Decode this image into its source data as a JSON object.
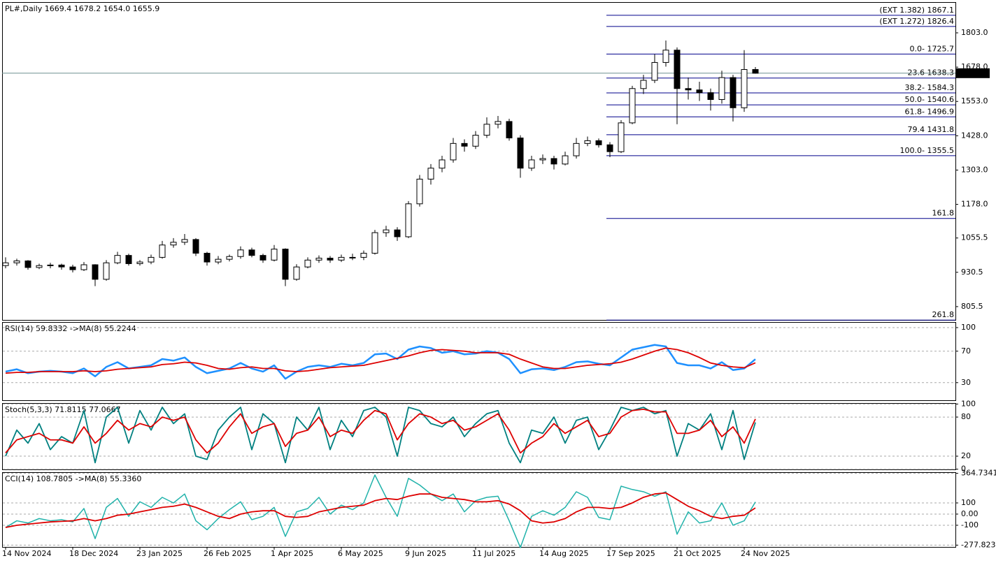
{
  "chart_data": [
    {
      "type": "candlestick",
      "title": "PL#,Daily  1669.4 1678.2 1654.0 1655.9",
      "candles": [
        [
          955,
          985,
          945,
          965
        ],
        [
          965,
          980,
          955,
          972
        ],
        [
          972,
          975,
          940,
          948
        ],
        [
          948,
          962,
          942,
          955
        ],
        [
          955,
          965,
          945,
          957
        ],
        [
          957,
          962,
          940,
          950
        ],
        [
          950,
          958,
          930,
          940
        ],
        [
          940,
          968,
          935,
          958
        ],
        [
          958,
          960,
          880,
          905
        ],
        [
          905,
          975,
          900,
          965
        ],
        [
          965,
          1005,
          960,
          992
        ],
        [
          992,
          998,
          955,
          962
        ],
        [
          962,
          975,
          955,
          968
        ],
        [
          968,
          995,
          960,
          985
        ],
        [
          985,
          1045,
          980,
          1030
        ],
        [
          1030,
          1055,
          1020,
          1040
        ],
        [
          1040,
          1070,
          1030,
          1050
        ],
        [
          1050,
          1055,
          990,
          1000
        ],
        [
          1000,
          1005,
          955,
          968
        ],
        [
          968,
          990,
          960,
          978
        ],
        [
          978,
          995,
          970,
          988
        ],
        [
          988,
          1025,
          980,
          1012
        ],
        [
          1012,
          1020,
          985,
          992
        ],
        [
          992,
          998,
          965,
          975
        ],
        [
          975,
          1030,
          970,
          1015
        ],
        [
          1015,
          1018,
          880,
          905
        ],
        [
          905,
          960,
          900,
          950
        ],
        [
          950,
          985,
          945,
          975
        ],
        [
          975,
          992,
          965,
          982
        ],
        [
          982,
          990,
          965,
          975
        ],
        [
          975,
          995,
          968,
          985
        ],
        [
          985,
          998,
          975,
          985
        ],
        [
          985,
          1010,
          975,
          1000
        ],
        [
          1000,
          1085,
          995,
          1075
        ],
        [
          1075,
          1100,
          1060,
          1085
        ],
        [
          1085,
          1095,
          1045,
          1060
        ],
        [
          1060,
          1190,
          1055,
          1180
        ],
        [
          1180,
          1285,
          1170,
          1270
        ],
        [
          1270,
          1325,
          1250,
          1310
        ],
        [
          1310,
          1355,
          1295,
          1340
        ],
        [
          1340,
          1420,
          1330,
          1400
        ],
        [
          1400,
          1415,
          1370,
          1390
        ],
        [
          1390,
          1445,
          1380,
          1430
        ],
        [
          1430,
          1495,
          1420,
          1470
        ],
        [
          1470,
          1500,
          1455,
          1480
        ],
        [
          1480,
          1490,
          1410,
          1420
        ],
        [
          1420,
          1430,
          1275,
          1310
        ],
        [
          1310,
          1355,
          1300,
          1340
        ],
        [
          1340,
          1360,
          1325,
          1345
        ],
        [
          1345,
          1355,
          1305,
          1325
        ],
        [
          1325,
          1370,
          1320,
          1355
        ],
        [
          1355,
          1420,
          1345,
          1400
        ],
        [
          1400,
          1425,
          1390,
          1410
        ],
        [
          1410,
          1418,
          1385,
          1395
        ],
        [
          1395,
          1405,
          1350,
          1370
        ],
        [
          1370,
          1485,
          1365,
          1475
        ],
        [
          1475,
          1610,
          1470,
          1600
        ],
        [
          1600,
          1650,
          1580,
          1630
        ],
        [
          1630,
          1725,
          1620,
          1695
        ],
        [
          1695,
          1775,
          1680,
          1740
        ],
        [
          1740,
          1750,
          1470,
          1600
        ],
        [
          1600,
          1640,
          1560,
          1595
        ],
        [
          1595,
          1625,
          1555,
          1585
        ],
        [
          1585,
          1600,
          1520,
          1560
        ],
        [
          1560,
          1665,
          1545,
          1640
        ],
        [
          1640,
          1650,
          1480,
          1530
        ],
        [
          1530,
          1740,
          1515,
          1669.4
        ],
        [
          1669.4,
          1678.2,
          1654.0,
          1655.9
        ]
      ],
      "ylim": [
        757,
        1915
      ],
      "yticks": [
        {
          "value": 1803,
          "label": "1803.0"
        },
        {
          "value": 1678,
          "label": "1678.0"
        },
        {
          "value": 1553,
          "label": "1553.0"
        },
        {
          "value": 1428,
          "label": "1428.0"
        },
        {
          "value": 1303,
          "label": "1303.0"
        },
        {
          "value": 1178,
          "label": "1178.0"
        },
        1055.5,
        930.5,
        805.5
      ],
      "fib_levels": [
        {
          "value": 1867.1,
          "label": "(EXT 1.382)  1867.1"
        },
        {
          "value": 1826.4,
          "label": "(EXT 1.272)  1826.4"
        },
        {
          "value": 1725.7,
          "label": "0.0- 1725.7"
        },
        {
          "value": 1638.3,
          "label": "23.6  1638.3"
        },
        {
          "value": 1584.3,
          "label": "38.2- 1584.3"
        },
        {
          "value": 1540.6,
          "label": "50.0- 1540.6"
        },
        {
          "value": 1496.9,
          "label": "61.8- 1496.9"
        },
        {
          "value": 1431.8,
          "label": "79.4 1431.8"
        },
        {
          "value": 1355.5,
          "label": "100.0- 1355.5"
        },
        {
          "value": 1126.7,
          "label": "161.8"
        },
        {
          "value": 756.5,
          "label": "261.8"
        }
      ],
      "fib_color": "#00008b",
      "price_line_color": "#6f9090"
    },
    {
      "type": "line",
      "title": "RSI(14) 59.8332  ->MA(8) 55.2244",
      "series": [
        {
          "color": "#1e90ff",
          "width": 2.5,
          "values": [
            44,
            47,
            42,
            44,
            45,
            44,
            42,
            48,
            38,
            50,
            56,
            48,
            50,
            52,
            60,
            58,
            62,
            50,
            42,
            45,
            48,
            55,
            48,
            44,
            52,
            35,
            44,
            50,
            52,
            50,
            54,
            52,
            55,
            66,
            67,
            60,
            72,
            76,
            74,
            68,
            70,
            66,
            67,
            70,
            68,
            60,
            42,
            47,
            48,
            46,
            50,
            56,
            57,
            54,
            52,
            62,
            72,
            75,
            78,
            76,
            55,
            52,
            52,
            48,
            56,
            46,
            48,
            59.8332
          ]
        },
        {
          "color": "#dd0000",
          "width": 1.8,
          "values": [
            42,
            43,
            43,
            44,
            44,
            44,
            44,
            45,
            44,
            45,
            47,
            48,
            49,
            50,
            53,
            54,
            56,
            55,
            52,
            48,
            47,
            49,
            50,
            48,
            48,
            45,
            44,
            45,
            47,
            49,
            50,
            51,
            52,
            55,
            58,
            61,
            64,
            68,
            71,
            72,
            71,
            70,
            68,
            68,
            68,
            66,
            60,
            55,
            50,
            48,
            48,
            50,
            52,
            53,
            54,
            56,
            60,
            65,
            70,
            74,
            72,
            68,
            62,
            55,
            52,
            50,
            49,
            55.2244
          ]
        }
      ],
      "ylim": [
        7.6,
        107.1
      ],
      "yticks": [
        100,
        70,
        30
      ]
    },
    {
      "type": "line",
      "title": "Stoch(5,3,3) 71.8115 77.0667",
      "series": [
        {
          "color": "#008080",
          "width": 1.8,
          "values": [
            20,
            60,
            40,
            70,
            30,
            50,
            40,
            90,
            10,
            80,
            95,
            40,
            90,
            60,
            95,
            70,
            85,
            20,
            15,
            60,
            80,
            95,
            30,
            85,
            70,
            10,
            80,
            60,
            95,
            30,
            75,
            50,
            90,
            95,
            80,
            20,
            95,
            90,
            70,
            65,
            80,
            50,
            70,
            85,
            90,
            40,
            10,
            60,
            55,
            80,
            40,
            75,
            80,
            30,
            60,
            95,
            90,
            95,
            85,
            90,
            20,
            70,
            60,
            85,
            30,
            90,
            15,
            71.8115
          ]
        },
        {
          "color": "#dd0000",
          "width": 1.8,
          "values": [
            25,
            45,
            50,
            55,
            45,
            45,
            40,
            65,
            40,
            55,
            75,
            60,
            70,
            65,
            80,
            75,
            80,
            45,
            25,
            40,
            65,
            85,
            55,
            65,
            70,
            35,
            55,
            60,
            80,
            50,
            60,
            55,
            75,
            90,
            85,
            45,
            70,
            85,
            80,
            70,
            75,
            60,
            65,
            75,
            85,
            60,
            25,
            40,
            50,
            70,
            55,
            65,
            75,
            50,
            55,
            80,
            90,
            92,
            88,
            88,
            55,
            55,
            60,
            75,
            50,
            65,
            40,
            77.0667
          ]
        }
      ],
      "ylim": [
        -0.3,
        101.5
      ],
      "yticks": [
        100,
        80,
        20,
        0
      ]
    },
    {
      "type": "line",
      "title": "CCI(14) 108.7805  ->MA(8) 55.3360",
      "series": [
        {
          "color": "#20b2aa",
          "width": 1.5,
          "values": [
            -120,
            -60,
            -80,
            -40,
            -60,
            -50,
            -70,
            50,
            -220,
            60,
            140,
            -20,
            110,
            60,
            150,
            100,
            180,
            -60,
            -140,
            -40,
            40,
            110,
            -50,
            -20,
            60,
            -200,
            20,
            50,
            150,
            0,
            80,
            40,
            100,
            350,
            150,
            -20,
            320,
            260,
            180,
            120,
            180,
            20,
            120,
            150,
            160,
            -60,
            -300,
            -20,
            30,
            -10,
            60,
            200,
            150,
            -30,
            -50,
            250,
            220,
            200,
            160,
            200,
            -180,
            20,
            -80,
            -60,
            100,
            -100,
            -60,
            108.7805
          ]
        },
        {
          "color": "#dd0000",
          "width": 1.8,
          "values": [
            -120,
            -100,
            -90,
            -80,
            -70,
            -65,
            -60,
            -40,
            -60,
            -40,
            -10,
            0,
            20,
            40,
            60,
            70,
            90,
            60,
            20,
            -20,
            -40,
            0,
            20,
            30,
            30,
            -20,
            -30,
            -20,
            20,
            40,
            60,
            70,
            80,
            120,
            140,
            130,
            160,
            180,
            180,
            150,
            140,
            130,
            110,
            110,
            120,
            90,
            30,
            -60,
            -80,
            -70,
            -40,
            20,
            60,
            60,
            50,
            60,
            100,
            150,
            180,
            190,
            130,
            70,
            30,
            -20,
            -40,
            -20,
            -10,
            55.336
          ]
        }
      ],
      "ylim": [
        -294,
        375
      ],
      "yticks": [
        364.7341,
        100,
        {
          "value": 0,
          "label": "0.00"
        },
        -100,
        -277.8233
      ],
      "xticks": [
        {
          "value": 0,
          "label": "14 Nov 2024"
        },
        {
          "value": 6,
          "label": "18 Dec 2024"
        },
        {
          "value": 12,
          "label": "23 Jan 2025"
        },
        {
          "value": 18,
          "label": "26 Feb 2025"
        },
        {
          "value": 24,
          "label": "1 Apr 2025"
        },
        {
          "value": 30,
          "label": "6 May 2025"
        },
        {
          "value": 36,
          "label": "9 Jun 2025"
        },
        {
          "value": 42,
          "label": "11 Jul 2025"
        },
        {
          "value": 48,
          "label": "14 Aug 2025"
        },
        {
          "value": 54,
          "label": "17 Sep 2025"
        },
        {
          "value": 60,
          "label": "21 Oct 2025"
        },
        {
          "value": 66,
          "label": "24 Nov 2025"
        }
      ]
    }
  ]
}
